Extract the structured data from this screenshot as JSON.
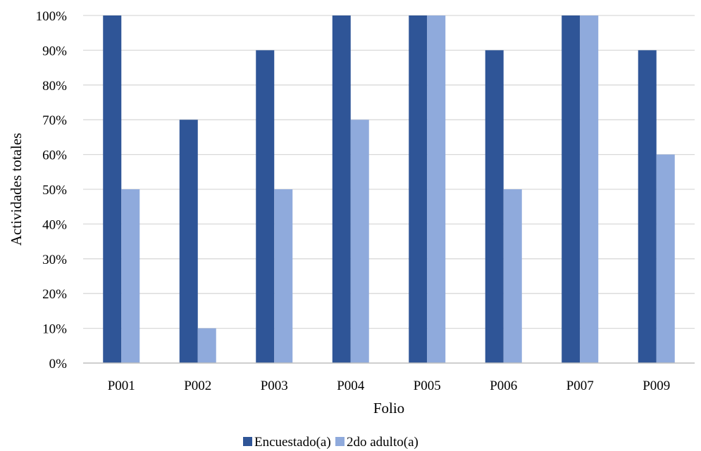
{
  "chart_data": {
    "type": "bar",
    "title": "",
    "xlabel": "Folio",
    "ylabel": "Actividades totales",
    "ylim": [
      0,
      100
    ],
    "y_tick_step": 10,
    "y_tick_format": "percent",
    "y_ticks": [
      "0%",
      "10%",
      "20%",
      "30%",
      "40%",
      "50%",
      "60%",
      "70%",
      "80%",
      "90%",
      "100%"
    ],
    "grid": true,
    "legend_position": "bottom",
    "categories": [
      "P001",
      "P002",
      "P003",
      "P004",
      "P005",
      "P006",
      "P007",
      "P009"
    ],
    "series": [
      {
        "name": "Encuestado(a)",
        "color": "#2f5597",
        "values": [
          100,
          70,
          90,
          100,
          100,
          90,
          100,
          90
        ]
      },
      {
        "name": "2do adulto(a)",
        "color": "#8faadc",
        "values": [
          50,
          10,
          50,
          70,
          100,
          50,
          100,
          60
        ]
      }
    ]
  }
}
